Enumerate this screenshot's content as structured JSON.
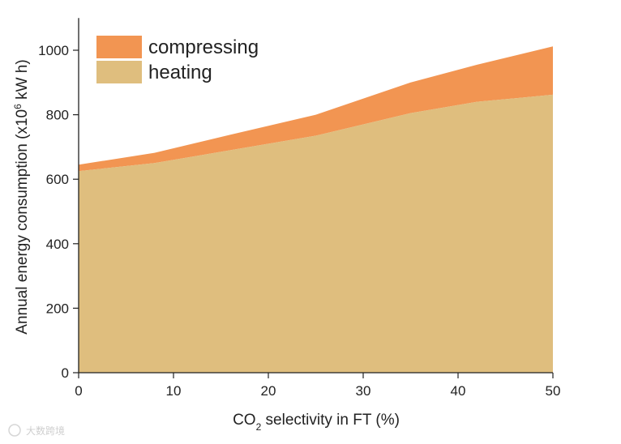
{
  "chart_data": {
    "type": "area",
    "stacked": true,
    "title": "",
    "xlabel_prefix": "CO",
    "xlabel_subscript": "2",
    "xlabel_suffix": " selectivity in FT (%)",
    "ylabel_main": "Annual energy consumption (x10",
    "ylabel_superscript": "6",
    "ylabel_suffix": " kW h)",
    "xlim": [
      0,
      50
    ],
    "ylim": [
      0,
      1100
    ],
    "xticks": [
      0,
      10,
      20,
      30,
      40,
      50
    ],
    "yticks": [
      0,
      200,
      400,
      600,
      800,
      1000
    ],
    "grid": false,
    "legend_position": "top-left",
    "x": [
      0,
      8,
      16,
      25,
      35,
      42,
      50
    ],
    "series": [
      {
        "name": "heating",
        "color": "#dfbe7e",
        "values": [
          625,
          650,
          690,
          735,
          805,
          840,
          862
        ]
      },
      {
        "name": "compressing",
        "color": "#f29552",
        "values": [
          20,
          32,
          48,
          65,
          95,
          115,
          150
        ]
      }
    ],
    "legend_order": [
      "compressing",
      "heating"
    ]
  },
  "watermark": "大数跨境"
}
